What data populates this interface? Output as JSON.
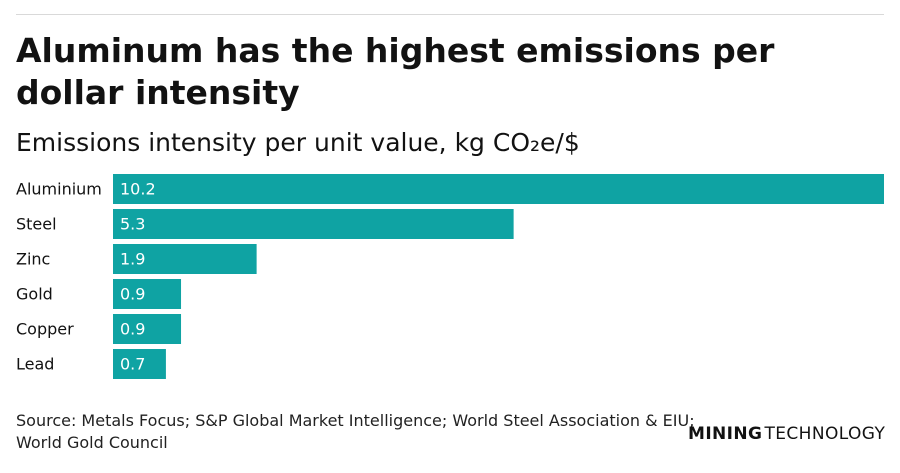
{
  "title": "Aluminum has the highest emissions per dollar intensity",
  "subtitle": "Emissions intensity per unit value, kg CO₂e/$",
  "source": "Source: Metals Focus; S&P Global Market Intelligence; World Steel Association & EIU; World Gold Council",
  "brand": {
    "part1": "MINING",
    "part2": "TECHNOLOGY"
  },
  "colors": {
    "bar": "#0fa3a3",
    "label_text": "#ffffff"
  },
  "chart_data": {
    "type": "bar",
    "orientation": "horizontal",
    "categories": [
      "Aluminium",
      "Steel",
      "Zinc",
      "Gold",
      "Copper",
      "Lead"
    ],
    "values": [
      10.2,
      5.3,
      1.9,
      0.9,
      0.9,
      0.7
    ],
    "value_labels": [
      "10.2",
      "5.3",
      "1.9",
      "0.9",
      "0.9",
      "0.7"
    ],
    "xlim": [
      0,
      10.2
    ],
    "grid": false,
    "legend": "none"
  }
}
